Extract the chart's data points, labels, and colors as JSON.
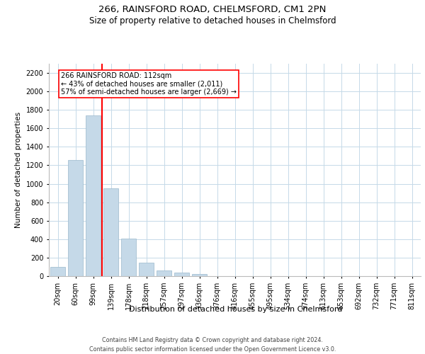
{
  "title1": "266, RAINSFORD ROAD, CHELMSFORD, CM1 2PN",
  "title2": "Size of property relative to detached houses in Chelmsford",
  "xlabel": "Distribution of detached houses by size in Chelmsford",
  "ylabel": "Number of detached properties",
  "footnote1": "Contains HM Land Registry data © Crown copyright and database right 2024.",
  "footnote2": "Contains public sector information licensed under the Open Government Licence v3.0.",
  "bar_color": "#c5d9e8",
  "bar_edge_color": "#9ab8cc",
  "categories": [
    "20sqm",
    "60sqm",
    "99sqm",
    "139sqm",
    "178sqm",
    "218sqm",
    "257sqm",
    "297sqm",
    "336sqm",
    "376sqm",
    "416sqm",
    "455sqm",
    "495sqm",
    "534sqm",
    "574sqm",
    "613sqm",
    "653sqm",
    "692sqm",
    "732sqm",
    "771sqm",
    "811sqm"
  ],
  "values": [
    100,
    1260,
    1740,
    950,
    410,
    148,
    65,
    35,
    22,
    0,
    0,
    0,
    0,
    0,
    0,
    0,
    0,
    0,
    0,
    0,
    0
  ],
  "red_line_index": 2.5,
  "ylim": [
    0,
    2300
  ],
  "yticks": [
    0,
    200,
    400,
    600,
    800,
    1000,
    1200,
    1400,
    1600,
    1800,
    2000,
    2200
  ],
  "annotation_title": "266 RAINSFORD ROAD: 112sqm",
  "annotation_line1": "← 43% of detached houses are smaller (2,011)",
  "annotation_line2": "57% of semi-detached houses are larger (2,669) →",
  "bg_color": "#ffffff",
  "grid_color": "#c5d9e8",
  "title1_fontsize": 9.5,
  "title2_fontsize": 8.5,
  "ylabel_fontsize": 7.5,
  "xlabel_fontsize": 8,
  "tick_fontsize": 7,
  "annotation_fontsize": 7,
  "footnote_fontsize": 5.8
}
